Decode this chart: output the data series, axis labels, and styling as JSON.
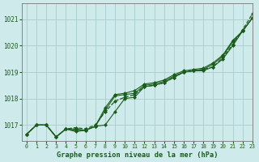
{
  "title": "Graphe pression niveau de la mer (hPa)",
  "background_color": "#ceeaea",
  "grid_color": "#aacccc",
  "line_color": "#1a5c1a",
  "xlim": [
    -0.5,
    23
  ],
  "ylim": [
    1016.4,
    1021.6
  ],
  "yticks": [
    1017,
    1018,
    1019,
    1020,
    1021
  ],
  "xticks": [
    0,
    1,
    2,
    3,
    4,
    5,
    6,
    7,
    8,
    9,
    10,
    11,
    12,
    13,
    14,
    15,
    16,
    17,
    18,
    19,
    20,
    21,
    22,
    23
  ],
  "series": [
    [
      1016.65,
      1017.0,
      1017.0,
      1016.55,
      1016.85,
      1016.9,
      1016.85,
      1017.0,
      1017.5,
      1017.9,
      1018.05,
      1018.15,
      1018.45,
      1018.5,
      1018.6,
      1018.8,
      1019.0,
      1019.05,
      1019.1,
      1019.2,
      1019.55,
      1020.05,
      1020.6,
      1021.2
    ],
    [
      1016.65,
      1017.0,
      1017.0,
      1016.55,
      1016.85,
      1016.85,
      1016.8,
      1016.95,
      1017.0,
      1017.5,
      1018.0,
      1018.05,
      1018.45,
      1018.5,
      1018.6,
      1018.8,
      1019.0,
      1019.05,
      1019.05,
      1019.2,
      1019.5,
      1020.0,
      1020.55,
      1021.05
    ],
    [
      1016.65,
      1017.0,
      1017.0,
      1016.55,
      1016.85,
      1016.8,
      1016.8,
      1016.95,
      1017.55,
      1018.1,
      1018.15,
      1018.2,
      1018.5,
      1018.55,
      1018.65,
      1018.85,
      1019.0,
      1019.05,
      1019.1,
      1019.3,
      1019.6,
      1020.15,
      1020.55,
      1021.05
    ],
    [
      1016.65,
      1017.0,
      1017.0,
      1016.55,
      1016.85,
      1016.75,
      1016.8,
      1016.95,
      1017.65,
      1018.15,
      1018.2,
      1018.3,
      1018.55,
      1018.6,
      1018.7,
      1018.9,
      1019.05,
      1019.1,
      1019.15,
      1019.35,
      1019.65,
      1020.2,
      1020.55,
      1021.05
    ]
  ],
  "series_styles": [
    {
      "linestyle": "--",
      "linewidth": 0.9,
      "marker": "D",
      "markersize": 2.0
    },
    {
      "linestyle": "-",
      "linewidth": 0.8,
      "marker": "D",
      "markersize": 2.0
    },
    {
      "linestyle": "-",
      "linewidth": 0.8,
      "marker": "D",
      "markersize": 2.0
    },
    {
      "linestyle": "-",
      "linewidth": 0.8,
      "marker": "D",
      "markersize": 2.0
    }
  ]
}
